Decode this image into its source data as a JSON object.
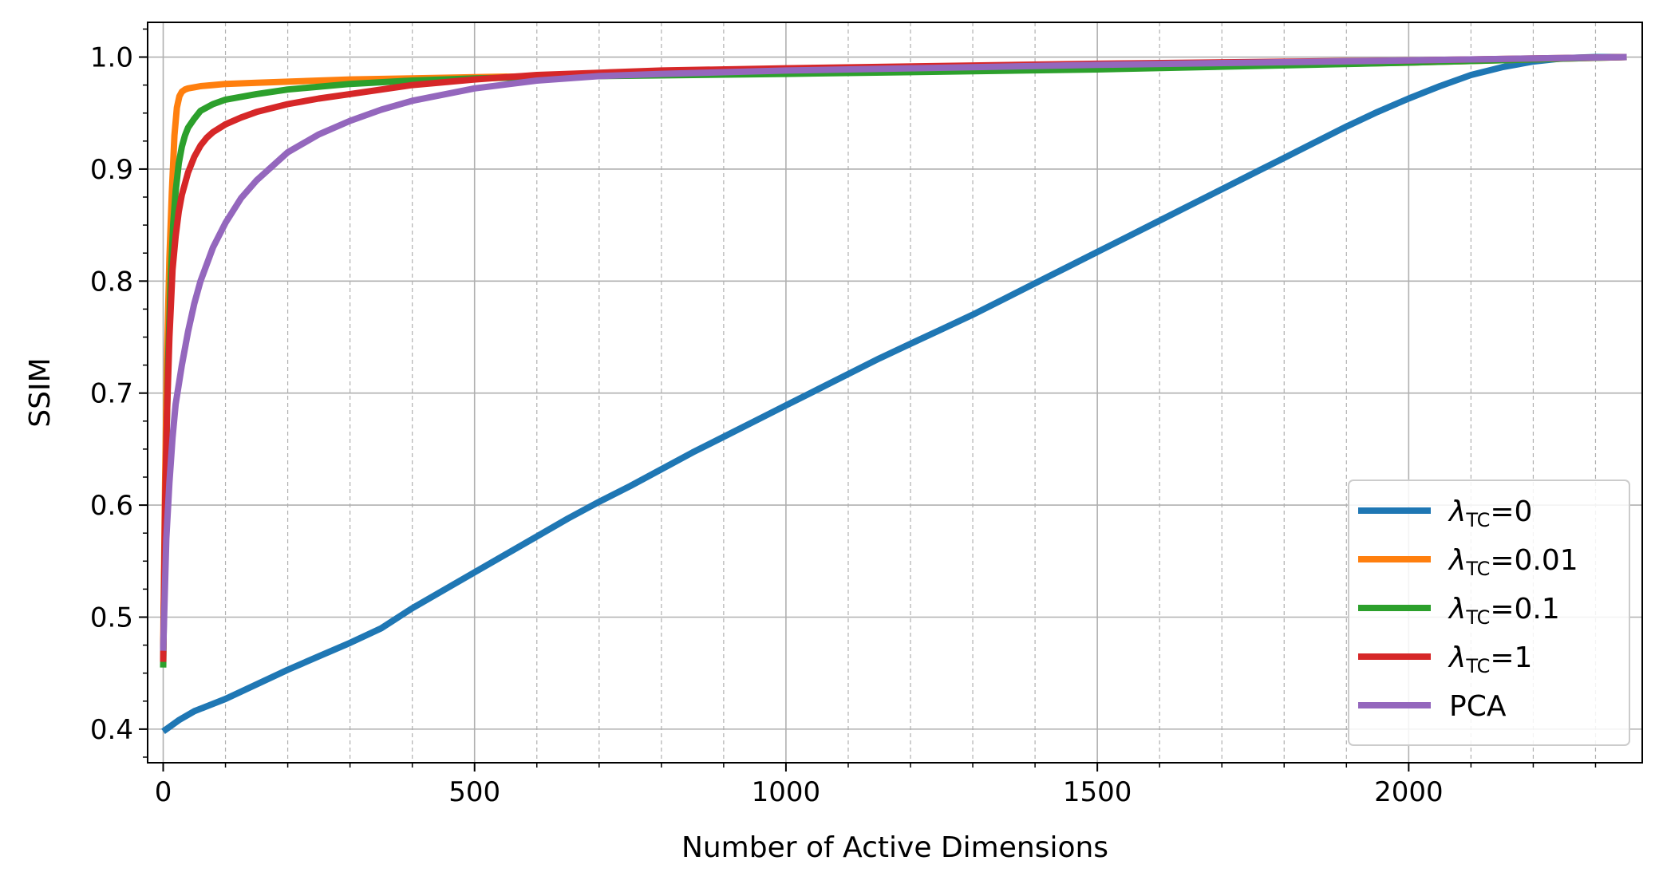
{
  "chart_data": {
    "type": "line",
    "title": "",
    "xlabel": "Number of Active Dimensions",
    "ylabel": "SSIM",
    "xlim": [
      -25,
      2375
    ],
    "ylim": [
      0.37,
      1.031
    ],
    "x_ticks": [
      0,
      500,
      1000,
      1500,
      2000
    ],
    "x_tick_labels": [
      "0",
      "500",
      "1000",
      "1500",
      "2000"
    ],
    "y_ticks": [
      0.4,
      0.5,
      0.6,
      0.7,
      0.8,
      0.9,
      1.0
    ],
    "y_tick_labels": [
      "0.4",
      "0.5",
      "0.6",
      "0.7",
      "0.8",
      "0.9",
      "1.0"
    ],
    "grid": true,
    "legend_position": "lower right",
    "series": [
      {
        "name": "λTC=0",
        "label_main": "λ",
        "label_sub": "TC",
        "label_tail": "=0",
        "color": "#1f77b4",
        "x": [
          0,
          25,
          50,
          100,
          150,
          200,
          250,
          300,
          350,
          400,
          450,
          500,
          550,
          600,
          650,
          700,
          750,
          800,
          850,
          900,
          950,
          1000,
          1050,
          1100,
          1150,
          1200,
          1250,
          1300,
          1350,
          1400,
          1450,
          1500,
          1550,
          1600,
          1650,
          1700,
          1750,
          1800,
          1850,
          1900,
          1950,
          2000,
          2050,
          2100,
          2150,
          2200,
          2250,
          2300,
          2350
        ],
        "y": [
          0.398,
          0.408,
          0.416,
          0.427,
          0.44,
          0.453,
          0.465,
          0.477,
          0.49,
          0.508,
          0.524,
          0.54,
          0.556,
          0.572,
          0.588,
          0.603,
          0.617,
          0.632,
          0.647,
          0.661,
          0.675,
          0.689,
          0.703,
          0.717,
          0.731,
          0.744,
          0.757,
          0.77,
          0.784,
          0.798,
          0.812,
          0.826,
          0.84,
          0.854,
          0.868,
          0.882,
          0.896,
          0.91,
          0.924,
          0.938,
          0.951,
          0.963,
          0.974,
          0.984,
          0.991,
          0.996,
          0.999,
          1.0,
          1.0
        ]
      },
      {
        "name": "λTC=0.01",
        "label_main": "λ",
        "label_sub": "TC",
        "label_tail": "=0.01",
        "color": "#ff7f0e",
        "x": [
          0,
          3,
          6,
          10,
          14,
          18,
          22,
          26,
          30,
          35,
          40,
          50,
          60,
          80,
          100,
          150,
          200,
          300,
          400,
          500,
          700,
          1000,
          1500,
          2000,
          2350
        ],
        "y": [
          0.47,
          0.62,
          0.73,
          0.82,
          0.88,
          0.93,
          0.955,
          0.965,
          0.969,
          0.971,
          0.972,
          0.973,
          0.974,
          0.975,
          0.976,
          0.977,
          0.978,
          0.98,
          0.981,
          0.982,
          0.984,
          0.986,
          0.99,
          0.995,
          1.0
        ]
      },
      {
        "name": "λTC=0.1",
        "label_main": "λ",
        "label_sub": "TC",
        "label_tail": "=0.1",
        "color": "#2ca02c",
        "x": [
          0,
          2,
          5,
          8,
          12,
          16,
          20,
          25,
          30,
          35,
          40,
          50,
          60,
          80,
          100,
          150,
          200,
          300,
          400,
          500,
          700,
          1000,
          1500,
          2000,
          2350
        ],
        "y": [
          0.455,
          0.55,
          0.65,
          0.73,
          0.8,
          0.85,
          0.88,
          0.905,
          0.92,
          0.93,
          0.937,
          0.945,
          0.952,
          0.958,
          0.962,
          0.967,
          0.971,
          0.976,
          0.979,
          0.981,
          0.983,
          0.985,
          0.989,
          0.995,
          1.0
        ]
      },
      {
        "name": "λTC=1",
        "label_main": "λ",
        "label_sub": "TC",
        "label_tail": "=1",
        "color": "#d62728",
        "x": [
          0,
          3,
          6,
          10,
          15,
          20,
          25,
          30,
          40,
          50,
          60,
          70,
          80,
          100,
          125,
          150,
          200,
          250,
          300,
          400,
          500,
          600,
          700,
          800,
          1000,
          1500,
          2000,
          2350
        ],
        "y": [
          0.46,
          0.6,
          0.68,
          0.75,
          0.81,
          0.84,
          0.862,
          0.877,
          0.897,
          0.911,
          0.921,
          0.928,
          0.933,
          0.94,
          0.946,
          0.951,
          0.958,
          0.963,
          0.967,
          0.975,
          0.98,
          0.984,
          0.986,
          0.988,
          0.99,
          0.994,
          0.997,
          1.0
        ]
      },
      {
        "name": "PCA",
        "label_main": "PCA",
        "label_sub": "",
        "label_tail": "",
        "color": "#9467bd",
        "x": [
          0,
          5,
          10,
          15,
          20,
          30,
          40,
          50,
          60,
          80,
          100,
          125,
          150,
          200,
          250,
          300,
          350,
          400,
          500,
          600,
          700,
          800,
          1000,
          1200,
          1500,
          2000,
          2350
        ],
        "y": [
          0.47,
          0.57,
          0.62,
          0.66,
          0.69,
          0.725,
          0.755,
          0.78,
          0.8,
          0.83,
          0.852,
          0.874,
          0.89,
          0.915,
          0.931,
          0.943,
          0.953,
          0.961,
          0.972,
          0.979,
          0.983,
          0.985,
          0.988,
          0.99,
          0.993,
          0.997,
          1.0
        ]
      }
    ]
  }
}
